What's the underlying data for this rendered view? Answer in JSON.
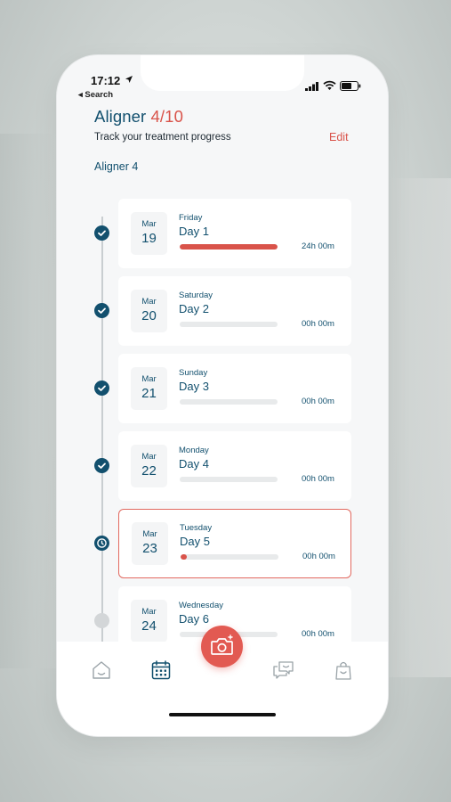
{
  "status": {
    "time": "17:12",
    "back_label": "◂ Search"
  },
  "header": {
    "title": "Aligner",
    "title_progress": "4/10",
    "subtitle": "Track your treatment progress",
    "edit_label": "Edit"
  },
  "section_label": "Aligner 4",
  "days": [
    {
      "month": "Mar",
      "date": "19",
      "weekday": "Friday",
      "day": "Day 1",
      "duration": "24h 00m",
      "progress": 1.0,
      "state": "done"
    },
    {
      "month": "Mar",
      "date": "20",
      "weekday": "Saturday",
      "day": "Day 2",
      "duration": "00h 00m",
      "progress": 0.0,
      "state": "done"
    },
    {
      "month": "Mar",
      "date": "21",
      "weekday": "Sunday",
      "day": "Day 3",
      "duration": "00h 00m",
      "progress": 0.0,
      "state": "done"
    },
    {
      "month": "Mar",
      "date": "22",
      "weekday": "Monday",
      "day": "Day 4",
      "duration": "00h 00m",
      "progress": 0.0,
      "state": "done"
    },
    {
      "month": "Mar",
      "date": "23",
      "weekday": "Tuesday",
      "day": "Day 5",
      "duration": "00h 00m",
      "progress": 0.06,
      "state": "current"
    },
    {
      "month": "Mar",
      "date": "24",
      "weekday": "Wednesday",
      "day": "Day 6",
      "duration": "00h 00m",
      "progress": 0.0,
      "state": "future"
    }
  ],
  "tabs": [
    {
      "icon": "home-icon"
    },
    {
      "icon": "calendar-icon"
    },
    {
      "icon": "camera-icon"
    },
    {
      "icon": "chat-icon"
    },
    {
      "icon": "shopping-bag-icon"
    }
  ],
  "colors": {
    "primary": "#12506e",
    "accent": "#d9534a",
    "background": "#f6f7f8"
  }
}
